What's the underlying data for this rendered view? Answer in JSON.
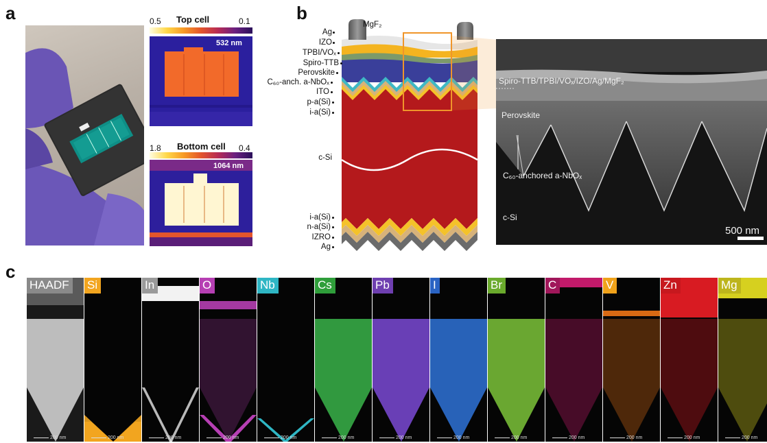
{
  "panels": {
    "a": "a",
    "b": "b",
    "c": "c"
  },
  "panel_a": {
    "top_cell": {
      "title": "Top cell",
      "cbar_min": "0.5",
      "cbar_max": "0.1",
      "wavelength": "532 nm"
    },
    "bottom_cell": {
      "title": "Bottom cell",
      "cbar_min": "1.8",
      "cbar_max": "0.4",
      "wavelength": "1064 nm"
    }
  },
  "panel_b": {
    "layers_top": [
      "Ag",
      "IZO",
      "TPBI/VOₓ",
      "Spiro-TTB",
      "Perovskite",
      "C₆₀-anch. a-NbOₓ",
      "ITO",
      "p-a(Si)",
      "i-a(Si)"
    ],
    "mgf2": "MgF₂",
    "csi": "c-Si",
    "layers_bottom": [
      "i-a(Si)",
      "n-a(Si)",
      "IZRO",
      "Ag"
    ],
    "sem": {
      "top_label": "Spiro-TTB/TPBI/VOₓ/IZO/Ag/MgF₂",
      "perovskite": "Perovskite",
      "nbox": "C₆₀-anchored a-NbOₓ",
      "csi": "c-Si",
      "scalebar": "500 nm"
    }
  },
  "panel_c": {
    "scalebar": "200 nm",
    "maps": [
      {
        "label": "HAADF",
        "label_bg": "#8a8a8a",
        "color": "#b8b8b8"
      },
      {
        "label": "Si",
        "label_bg": "#f2a51f",
        "color": "#f2a51f"
      },
      {
        "label": "In",
        "label_bg": "#9a9a9a",
        "color": "#e0e0e0"
      },
      {
        "label": "O",
        "label_bg": "#b63fb3",
        "color": "#b63fb3"
      },
      {
        "label": "Nb",
        "label_bg": "#2fb6c4",
        "color": "#2fb6c4"
      },
      {
        "label": "Cs",
        "label_bg": "#2f9e3a",
        "color": "#39b44a"
      },
      {
        "label": "Pb",
        "label_bg": "#6e3fb0",
        "color": "#7b4ad6"
      },
      {
        "label": "I",
        "label_bg": "#2a63c3",
        "color": "#2f73d8"
      },
      {
        "label": "Br",
        "label_bg": "#6aaa2c",
        "color": "#7cc43a"
      },
      {
        "label": "C",
        "label_bg": "#a0175a",
        "color": "#c21a6a"
      },
      {
        "label": "V",
        "label_bg": "#f0a21a",
        "color": "#d86a14"
      },
      {
        "label": "Zn",
        "label_bg": "#c7181e",
        "color": "#d81b22"
      },
      {
        "label": "Mg",
        "label_bg": "#bdb51c",
        "color": "#d6d01f"
      }
    ]
  }
}
